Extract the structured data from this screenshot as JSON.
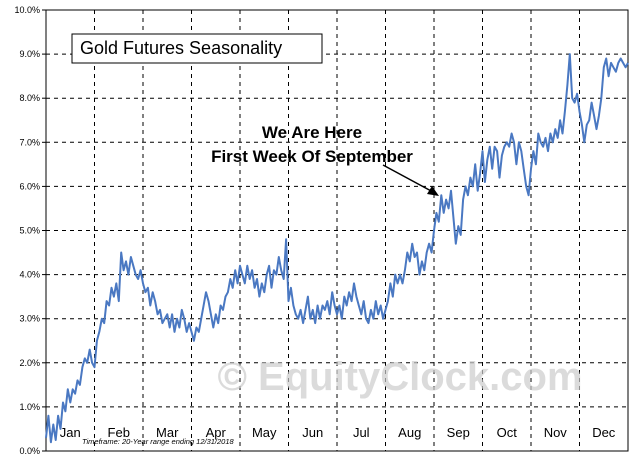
{
  "chart_data": {
    "type": "line",
    "title": "Gold Futures Seasonality",
    "annotation": {
      "line1": "We Are Here",
      "line2": "First Week Of September",
      "points_to_month": "Sep"
    },
    "footnote": "Timeframe:  20-Year range ending 12/31/2018",
    "watermark": "© EquityClock.com",
    "months": [
      "Jan",
      "Feb",
      "Mar",
      "Apr",
      "May",
      "Jun",
      "Jul",
      "Aug",
      "Sep",
      "Oct",
      "Nov",
      "Dec"
    ],
    "y_ticks": [
      "0.0%",
      "1.0%",
      "2.0%",
      "3.0%",
      "4.0%",
      "5.0%",
      "6.0%",
      "7.0%",
      "8.0%",
      "9.0%",
      "10.0%"
    ],
    "ylim": [
      0,
      10
    ],
    "y_unit": "%",
    "grid": true,
    "series_color": "#4a78c2",
    "series": [
      {
        "values": [
          [
            0.0,
            0.3
          ],
          [
            0.05,
            0.8
          ],
          [
            0.1,
            0.2
          ],
          [
            0.15,
            0.6
          ],
          [
            0.2,
            0.25
          ],
          [
            0.25,
            0.8
          ],
          [
            0.3,
            0.5
          ],
          [
            0.35,
            1.1
          ],
          [
            0.4,
            0.9
          ],
          [
            0.45,
            1.4
          ],
          [
            0.5,
            1.1
          ],
          [
            0.55,
            1.4
          ],
          [
            0.6,
            1.3
          ],
          [
            0.65,
            1.6
          ],
          [
            0.7,
            1.5
          ],
          [
            0.75,
            1.9
          ],
          [
            0.8,
            2.1
          ],
          [
            0.85,
            2.0
          ],
          [
            0.9,
            2.3
          ],
          [
            0.95,
            2.0
          ],
          [
            1.0,
            1.9
          ],
          [
            1.05,
            2.5
          ],
          [
            1.1,
            2.7
          ],
          [
            1.15,
            3.0
          ],
          [
            1.2,
            2.9
          ],
          [
            1.25,
            3.4
          ],
          [
            1.3,
            3.3
          ],
          [
            1.35,
            3.7
          ],
          [
            1.4,
            3.5
          ],
          [
            1.45,
            3.8
          ],
          [
            1.5,
            3.4
          ],
          [
            1.55,
            4.5
          ],
          [
            1.6,
            4.1
          ],
          [
            1.65,
            4.3
          ],
          [
            1.7,
            4.0
          ],
          [
            1.75,
            4.4
          ],
          [
            1.8,
            4.2
          ],
          [
            1.85,
            4.0
          ],
          [
            1.9,
            3.9
          ],
          [
            1.95,
            4.1
          ],
          [
            2.0,
            3.8
          ],
          [
            2.05,
            3.6
          ],
          [
            2.1,
            3.7
          ],
          [
            2.15,
            3.3
          ],
          [
            2.2,
            3.6
          ],
          [
            2.25,
            3.4
          ],
          [
            2.3,
            3.1
          ],
          [
            2.35,
            3.2
          ],
          [
            2.4,
            2.9
          ],
          [
            2.45,
            3.0
          ],
          [
            2.5,
            3.1
          ],
          [
            2.55,
            2.8
          ],
          [
            2.6,
            3.1
          ],
          [
            2.65,
            2.7
          ],
          [
            2.7,
            3.0
          ],
          [
            2.75,
            2.8
          ],
          [
            2.8,
            3.2
          ],
          [
            2.85,
            3.0
          ],
          [
            2.9,
            2.7
          ],
          [
            2.95,
            2.9
          ],
          [
            3.0,
            2.7
          ],
          [
            3.05,
            2.5
          ],
          [
            3.1,
            2.8
          ],
          [
            3.15,
            2.7
          ],
          [
            3.2,
            3.0
          ],
          [
            3.25,
            3.3
          ],
          [
            3.3,
            3.6
          ],
          [
            3.35,
            3.4
          ],
          [
            3.4,
            3.1
          ],
          [
            3.45,
            2.8
          ],
          [
            3.5,
            3.1
          ],
          [
            3.55,
            2.9
          ],
          [
            3.6,
            3.3
          ],
          [
            3.65,
            3.2
          ],
          [
            3.7,
            3.5
          ],
          [
            3.75,
            3.6
          ],
          [
            3.8,
            3.9
          ],
          [
            3.85,
            3.7
          ],
          [
            3.9,
            4.1
          ],
          [
            3.95,
            3.8
          ],
          [
            4.0,
            4.2
          ],
          [
            4.05,
            4.0
          ],
          [
            4.1,
            3.8
          ],
          [
            4.15,
            4.2
          ],
          [
            4.2,
            3.9
          ],
          [
            4.25,
            4.1
          ],
          [
            4.3,
            3.7
          ],
          [
            4.35,
            3.9
          ],
          [
            4.4,
            3.5
          ],
          [
            4.45,
            3.8
          ],
          [
            4.5,
            3.6
          ],
          [
            4.55,
            4.0
          ],
          [
            4.6,
            4.2
          ],
          [
            4.65,
            3.7
          ],
          [
            4.7,
            4.1
          ],
          [
            4.75,
            4.0
          ],
          [
            4.8,
            4.4
          ],
          [
            4.85,
            4.1
          ],
          [
            4.9,
            3.9
          ],
          [
            4.95,
            4.8
          ],
          [
            5.0,
            3.4
          ],
          [
            5.05,
            3.7
          ],
          [
            5.1,
            3.3
          ],
          [
            5.15,
            3.1
          ],
          [
            5.2,
            3.0
          ],
          [
            5.25,
            3.2
          ],
          [
            5.3,
            2.9
          ],
          [
            5.35,
            3.2
          ],
          [
            5.4,
            3.5
          ],
          [
            5.45,
            3.0
          ],
          [
            5.5,
            3.2
          ],
          [
            5.55,
            2.9
          ],
          [
            5.6,
            3.3
          ],
          [
            5.65,
            3.0
          ],
          [
            5.7,
            3.3
          ],
          [
            5.75,
            3.2
          ],
          [
            5.8,
            3.4
          ],
          [
            5.85,
            3.1
          ],
          [
            5.9,
            3.6
          ],
          [
            5.95,
            3.3
          ],
          [
            6.0,
            3.1
          ],
          [
            6.05,
            3.3
          ],
          [
            6.1,
            3.0
          ],
          [
            6.15,
            3.5
          ],
          [
            6.2,
            3.3
          ],
          [
            6.25,
            3.6
          ],
          [
            6.3,
            3.4
          ],
          [
            6.35,
            3.8
          ],
          [
            6.4,
            3.5
          ],
          [
            6.45,
            3.3
          ],
          [
            6.5,
            3.1
          ],
          [
            6.55,
            3.4
          ],
          [
            6.6,
            3.0
          ],
          [
            6.65,
            2.9
          ],
          [
            6.7,
            3.2
          ],
          [
            6.75,
            3.0
          ],
          [
            6.8,
            3.4
          ],
          [
            6.85,
            3.1
          ],
          [
            6.9,
            3.3
          ],
          [
            6.95,
            3.0
          ],
          [
            7.0,
            3.2
          ],
          [
            7.05,
            3.4
          ],
          [
            7.1,
            3.8
          ],
          [
            7.15,
            3.5
          ],
          [
            7.2,
            4.0
          ],
          [
            7.25,
            3.8
          ],
          [
            7.3,
            4.0
          ],
          [
            7.35,
            3.8
          ],
          [
            7.4,
            4.1
          ],
          [
            7.45,
            4.5
          ],
          [
            7.5,
            4.3
          ],
          [
            7.55,
            4.7
          ],
          [
            7.6,
            4.4
          ],
          [
            7.65,
            4.5
          ],
          [
            7.7,
            4.0
          ],
          [
            7.75,
            4.3
          ],
          [
            7.8,
            4.1
          ],
          [
            7.85,
            4.5
          ],
          [
            7.9,
            4.7
          ],
          [
            7.95,
            4.5
          ],
          [
            8.0,
            5.0
          ],
          [
            8.05,
            5.4
          ],
          [
            8.1,
            5.2
          ],
          [
            8.15,
            5.8
          ],
          [
            8.2,
            5.4
          ],
          [
            8.25,
            5.7
          ],
          [
            8.3,
            5.5
          ],
          [
            8.35,
            5.9
          ],
          [
            8.4,
            5.3
          ],
          [
            8.45,
            4.7
          ],
          [
            8.5,
            5.1
          ],
          [
            8.55,
            4.9
          ],
          [
            8.6,
            5.7
          ],
          [
            8.65,
            6.0
          ],
          [
            8.7,
            5.8
          ],
          [
            8.75,
            6.2
          ],
          [
            8.8,
            6.0
          ],
          [
            8.85,
            6.5
          ],
          [
            8.9,
            5.9
          ],
          [
            8.95,
            6.3
          ],
          [
            9.0,
            6.8
          ],
          [
            9.05,
            6.1
          ],
          [
            9.1,
            6.6
          ],
          [
            9.15,
            6.9
          ],
          [
            9.2,
            6.4
          ],
          [
            9.25,
            6.9
          ],
          [
            9.3,
            6.8
          ],
          [
            9.35,
            6.2
          ],
          [
            9.4,
            6.7
          ],
          [
            9.45,
            6.9
          ],
          [
            9.5,
            7.0
          ],
          [
            9.55,
            6.9
          ],
          [
            9.6,
            7.2
          ],
          [
            9.65,
            7.0
          ],
          [
            9.7,
            6.5
          ],
          [
            9.75,
            7.0
          ],
          [
            9.8,
            6.8
          ],
          [
            9.85,
            6.4
          ],
          [
            9.9,
            6.0
          ],
          [
            9.95,
            5.8
          ],
          [
            10.0,
            6.4
          ],
          [
            10.05,
            6.8
          ],
          [
            10.1,
            6.5
          ],
          [
            10.15,
            7.2
          ],
          [
            10.2,
            7.0
          ],
          [
            10.25,
            6.9
          ],
          [
            10.3,
            7.1
          ],
          [
            10.35,
            6.8
          ],
          [
            10.4,
            7.2
          ],
          [
            10.45,
            7.0
          ],
          [
            10.5,
            7.3
          ],
          [
            10.55,
            7.1
          ],
          [
            10.6,
            7.5
          ],
          [
            10.65,
            7.2
          ],
          [
            10.7,
            7.7
          ],
          [
            10.75,
            8.3
          ],
          [
            10.8,
            9.0
          ],
          [
            10.85,
            8.0
          ],
          [
            10.9,
            7.9
          ],
          [
            10.95,
            8.1
          ],
          [
            11.0,
            7.7
          ],
          [
            11.05,
            7.4
          ],
          [
            11.1,
            7.0
          ],
          [
            11.15,
            7.4
          ],
          [
            11.2,
            7.5
          ],
          [
            11.25,
            7.9
          ],
          [
            11.3,
            7.6
          ],
          [
            11.35,
            7.3
          ],
          [
            11.4,
            7.6
          ],
          [
            11.45,
            8.0
          ],
          [
            11.5,
            8.7
          ],
          [
            11.55,
            8.9
          ],
          [
            11.6,
            8.5
          ],
          [
            11.65,
            8.8
          ],
          [
            11.7,
            8.7
          ],
          [
            11.75,
            8.6
          ],
          [
            11.8,
            8.8
          ],
          [
            11.85,
            8.9
          ],
          [
            11.9,
            8.8
          ],
          [
            11.95,
            8.7
          ],
          [
            12.0,
            8.8
          ]
        ]
      }
    ]
  }
}
